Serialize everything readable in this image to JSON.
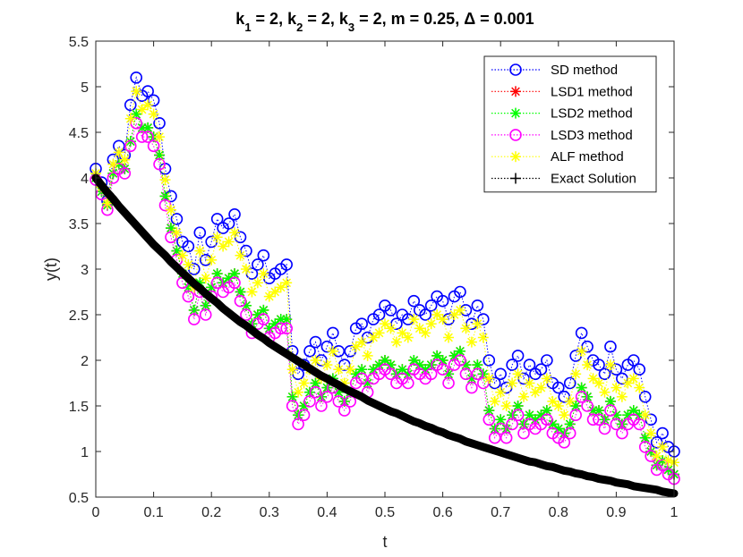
{
  "chart_data": {
    "type": "line",
    "title": "k₁ = 2, k₂ = 2, k₃ = 2, m = 0.25, Δ = 0.001",
    "title_parts": [
      {
        "text": "k",
        "sub": false
      },
      {
        "text": "1",
        "sub": true
      },
      {
        "text": " = 2, k",
        "sub": false
      },
      {
        "text": "2",
        "sub": true
      },
      {
        "text": " = 2, k",
        "sub": false
      },
      {
        "text": "3",
        "sub": true
      },
      {
        "text": " = 2, m = 0.25, Δ = 0.001",
        "sub": false
      }
    ],
    "xlabel": "t",
    "ylabel": "y(t)",
    "xlim": [
      0,
      1
    ],
    "ylim": [
      0.5,
      5.5
    ],
    "xticks": [
      0,
      0.1,
      0.2,
      0.3,
      0.4,
      0.5,
      0.6,
      0.7,
      0.8,
      0.9,
      1
    ],
    "xtick_labels": [
      "0",
      "0.1",
      "0.2",
      "0.3",
      "0.4",
      "0.5",
      "0.6",
      "0.7",
      "0.8",
      "0.9",
      "1"
    ],
    "yticks": [
      0.5,
      1,
      1.5,
      2,
      2.5,
      3,
      3.5,
      4,
      4.5,
      5,
      5.5
    ],
    "ytick_labels": [
      "0.5",
      "1",
      "1.5",
      "2",
      "2.5",
      "3",
      "3.5",
      "4",
      "4.5",
      "5",
      "5.5"
    ],
    "grid": false,
    "legend_position": "top-right",
    "x": [
      0,
      0.01,
      0.02,
      0.03,
      0.04,
      0.05,
      0.06,
      0.07,
      0.08,
      0.09,
      0.1,
      0.11,
      0.12,
      0.13,
      0.14,
      0.15,
      0.16,
      0.17,
      0.18,
      0.19,
      0.2,
      0.21,
      0.22,
      0.23,
      0.24,
      0.25,
      0.26,
      0.27,
      0.28,
      0.29,
      0.3,
      0.31,
      0.32,
      0.33,
      0.34,
      0.35,
      0.36,
      0.37,
      0.38,
      0.39,
      0.4,
      0.41,
      0.42,
      0.43,
      0.44,
      0.45,
      0.46,
      0.47,
      0.48,
      0.49,
      0.5,
      0.51,
      0.52,
      0.53,
      0.54,
      0.55,
      0.56,
      0.57,
      0.58,
      0.59,
      0.6,
      0.61,
      0.62,
      0.63,
      0.64,
      0.65,
      0.66,
      0.67,
      0.68,
      0.69,
      0.7,
      0.71,
      0.72,
      0.73,
      0.74,
      0.75,
      0.76,
      0.77,
      0.78,
      0.79,
      0.8,
      0.81,
      0.82,
      0.83,
      0.84,
      0.85,
      0.86,
      0.87,
      0.88,
      0.89,
      0.9,
      0.91,
      0.92,
      0.93,
      0.94,
      0.95,
      0.96,
      0.97,
      0.98,
      0.99,
      1.0
    ],
    "series": [
      {
        "name": "SD method",
        "color": "#0000ff",
        "marker": "circle",
        "values": [
          4.1,
          3.95,
          3.75,
          4.2,
          4.35,
          4.25,
          4.8,
          5.1,
          4.9,
          4.95,
          4.85,
          4.6,
          4.1,
          3.8,
          3.55,
          3.3,
          3.25,
          3.0,
          3.4,
          3.1,
          3.3,
          3.55,
          3.45,
          3.5,
          3.6,
          3.35,
          3.2,
          2.95,
          3.05,
          3.15,
          2.9,
          2.95,
          3.0,
          3.05,
          2.1,
          1.85,
          1.95,
          2.1,
          2.2,
          2.0,
          2.15,
          2.3,
          2.1,
          1.95,
          2.1,
          2.35,
          2.4,
          2.25,
          2.45,
          2.5,
          2.6,
          2.55,
          2.4,
          2.5,
          2.45,
          2.65,
          2.55,
          2.5,
          2.6,
          2.7,
          2.65,
          2.45,
          2.7,
          2.75,
          2.55,
          2.4,
          2.6,
          2.45,
          2.0,
          1.75,
          1.85,
          1.7,
          1.95,
          2.05,
          1.8,
          1.95,
          1.85,
          1.9,
          2.0,
          1.75,
          1.7,
          1.6,
          1.75,
          2.05,
          2.3,
          2.15,
          2.0,
          1.95,
          1.85,
          2.15,
          1.9,
          1.8,
          1.95,
          2.0,
          1.9,
          1.6,
          1.35,
          1.1,
          1.2,
          1.05,
          1.0
        ]
      },
      {
        "name": "LSD1 method",
        "color": "#ff0000",
        "marker": "asterisk",
        "values": [
          4.0,
          3.85,
          3.7,
          4.05,
          4.15,
          4.1,
          4.4,
          4.7,
          4.55,
          4.55,
          4.45,
          4.25,
          3.8,
          3.45,
          3.2,
          2.95,
          2.8,
          2.55,
          2.85,
          2.6,
          2.8,
          2.95,
          2.85,
          2.9,
          2.95,
          2.75,
          2.6,
          2.4,
          2.5,
          2.55,
          2.35,
          2.4,
          2.45,
          2.45,
          1.6,
          1.4,
          1.5,
          1.65,
          1.75,
          1.6,
          1.7,
          1.8,
          1.65,
          1.55,
          1.65,
          1.85,
          1.9,
          1.75,
          1.9,
          1.95,
          2.0,
          1.95,
          1.85,
          1.9,
          1.85,
          2.0,
          1.95,
          1.9,
          1.95,
          2.05,
          2.0,
          1.85,
          2.05,
          2.1,
          1.95,
          1.8,
          1.95,
          1.85,
          1.45,
          1.25,
          1.35,
          1.25,
          1.4,
          1.5,
          1.3,
          1.4,
          1.35,
          1.4,
          1.45,
          1.3,
          1.25,
          1.2,
          1.3,
          1.5,
          1.7,
          1.6,
          1.45,
          1.45,
          1.35,
          1.55,
          1.4,
          1.3,
          1.4,
          1.45,
          1.4,
          1.15,
          1.0,
          0.85,
          0.9,
          0.8,
          0.75
        ]
      },
      {
        "name": "LSD2 method",
        "color": "#00ff00",
        "marker": "asterisk",
        "values": [
          4.0,
          3.85,
          3.7,
          4.05,
          4.15,
          4.1,
          4.4,
          4.7,
          4.55,
          4.55,
          4.45,
          4.25,
          3.8,
          3.45,
          3.2,
          2.95,
          2.8,
          2.55,
          2.85,
          2.6,
          2.8,
          2.95,
          2.85,
          2.9,
          2.95,
          2.75,
          2.6,
          2.4,
          2.5,
          2.55,
          2.35,
          2.4,
          2.45,
          2.45,
          1.6,
          1.4,
          1.5,
          1.65,
          1.75,
          1.6,
          1.7,
          1.8,
          1.65,
          1.55,
          1.65,
          1.85,
          1.9,
          1.75,
          1.9,
          1.95,
          2.0,
          1.95,
          1.85,
          1.9,
          1.85,
          2.0,
          1.95,
          1.9,
          1.95,
          2.05,
          2.0,
          1.85,
          2.05,
          2.1,
          1.95,
          1.8,
          1.95,
          1.85,
          1.45,
          1.25,
          1.35,
          1.25,
          1.4,
          1.5,
          1.3,
          1.4,
          1.35,
          1.4,
          1.45,
          1.3,
          1.25,
          1.2,
          1.3,
          1.5,
          1.7,
          1.6,
          1.45,
          1.45,
          1.35,
          1.55,
          1.4,
          1.3,
          1.4,
          1.45,
          1.4,
          1.15,
          1.0,
          0.85,
          0.9,
          0.8,
          0.75
        ]
      },
      {
        "name": "LSD3 method",
        "color": "#ff00ff",
        "marker": "circle",
        "values": [
          3.98,
          3.82,
          3.65,
          4.0,
          4.1,
          4.05,
          4.35,
          4.6,
          4.45,
          4.45,
          4.35,
          4.15,
          3.7,
          3.35,
          3.1,
          2.85,
          2.7,
          2.45,
          2.75,
          2.5,
          2.7,
          2.85,
          2.75,
          2.8,
          2.85,
          2.65,
          2.5,
          2.3,
          2.4,
          2.45,
          2.25,
          2.3,
          2.35,
          2.35,
          1.5,
          1.3,
          1.4,
          1.55,
          1.65,
          1.5,
          1.6,
          1.7,
          1.55,
          1.45,
          1.55,
          1.75,
          1.8,
          1.65,
          1.8,
          1.85,
          1.9,
          1.85,
          1.75,
          1.8,
          1.75,
          1.9,
          1.85,
          1.8,
          1.85,
          1.95,
          1.9,
          1.75,
          1.95,
          2.0,
          1.85,
          1.7,
          1.85,
          1.75,
          1.35,
          1.15,
          1.25,
          1.15,
          1.3,
          1.4,
          1.2,
          1.3,
          1.25,
          1.3,
          1.35,
          1.2,
          1.15,
          1.1,
          1.2,
          1.4,
          1.6,
          1.5,
          1.35,
          1.35,
          1.25,
          1.45,
          1.3,
          1.2,
          1.3,
          1.35,
          1.3,
          1.05,
          0.95,
          0.8,
          0.85,
          0.75,
          0.7
        ]
      },
      {
        "name": "ALF method",
        "color": "#ffff00",
        "marker": "asterisk",
        "values": [
          4.05,
          3.9,
          3.72,
          4.15,
          4.28,
          4.2,
          4.65,
          4.95,
          4.75,
          4.8,
          4.7,
          4.45,
          3.98,
          3.65,
          3.4,
          3.15,
          3.05,
          2.8,
          3.2,
          2.9,
          3.1,
          3.35,
          3.25,
          3.3,
          3.4,
          3.15,
          3.0,
          2.75,
          2.85,
          2.95,
          2.7,
          2.75,
          2.8,
          2.85,
          1.9,
          1.65,
          1.75,
          1.9,
          2.0,
          1.8,
          1.95,
          2.1,
          1.9,
          1.75,
          1.9,
          2.15,
          2.2,
          2.05,
          2.25,
          2.3,
          2.4,
          2.35,
          2.2,
          2.3,
          2.25,
          2.45,
          2.35,
          2.3,
          2.4,
          2.5,
          2.45,
          2.25,
          2.5,
          2.55,
          2.35,
          2.2,
          2.4,
          2.25,
          1.8,
          1.55,
          1.65,
          1.5,
          1.75,
          1.85,
          1.6,
          1.75,
          1.65,
          1.7,
          1.8,
          1.55,
          1.5,
          1.4,
          1.55,
          1.85,
          2.1,
          1.95,
          1.8,
          1.75,
          1.65,
          1.95,
          1.7,
          1.6,
          1.75,
          1.8,
          1.7,
          1.4,
          1.2,
          0.95,
          1.05,
          0.9,
          0.88
        ]
      },
      {
        "name": "Exact Solution",
        "color": "#000000",
        "marker": "plus",
        "values": [
          4.0,
          3.92,
          3.84,
          3.77,
          3.69,
          3.62,
          3.55,
          3.48,
          3.41,
          3.34,
          3.27,
          3.21,
          3.15,
          3.08,
          3.02,
          2.96,
          2.9,
          2.84,
          2.79,
          2.73,
          2.68,
          2.63,
          2.57,
          2.52,
          2.47,
          2.42,
          2.38,
          2.33,
          2.28,
          2.24,
          2.19,
          2.15,
          2.11,
          2.07,
          2.03,
          1.99,
          1.95,
          1.91,
          1.87,
          1.83,
          1.8,
          1.76,
          1.73,
          1.69,
          1.66,
          1.63,
          1.6,
          1.56,
          1.53,
          1.5,
          1.47,
          1.44,
          1.42,
          1.39,
          1.36,
          1.33,
          1.31,
          1.28,
          1.26,
          1.23,
          1.21,
          1.18,
          1.16,
          1.14,
          1.11,
          1.09,
          1.07,
          1.05,
          1.03,
          1.01,
          0.99,
          0.97,
          0.95,
          0.93,
          0.91,
          0.89,
          0.88,
          0.86,
          0.84,
          0.83,
          0.81,
          0.79,
          0.78,
          0.76,
          0.75,
          0.73,
          0.72,
          0.7,
          0.69,
          0.68,
          0.66,
          0.65,
          0.64,
          0.62,
          0.61,
          0.6,
          0.59,
          0.58,
          0.56,
          0.55,
          0.54
        ]
      }
    ]
  }
}
